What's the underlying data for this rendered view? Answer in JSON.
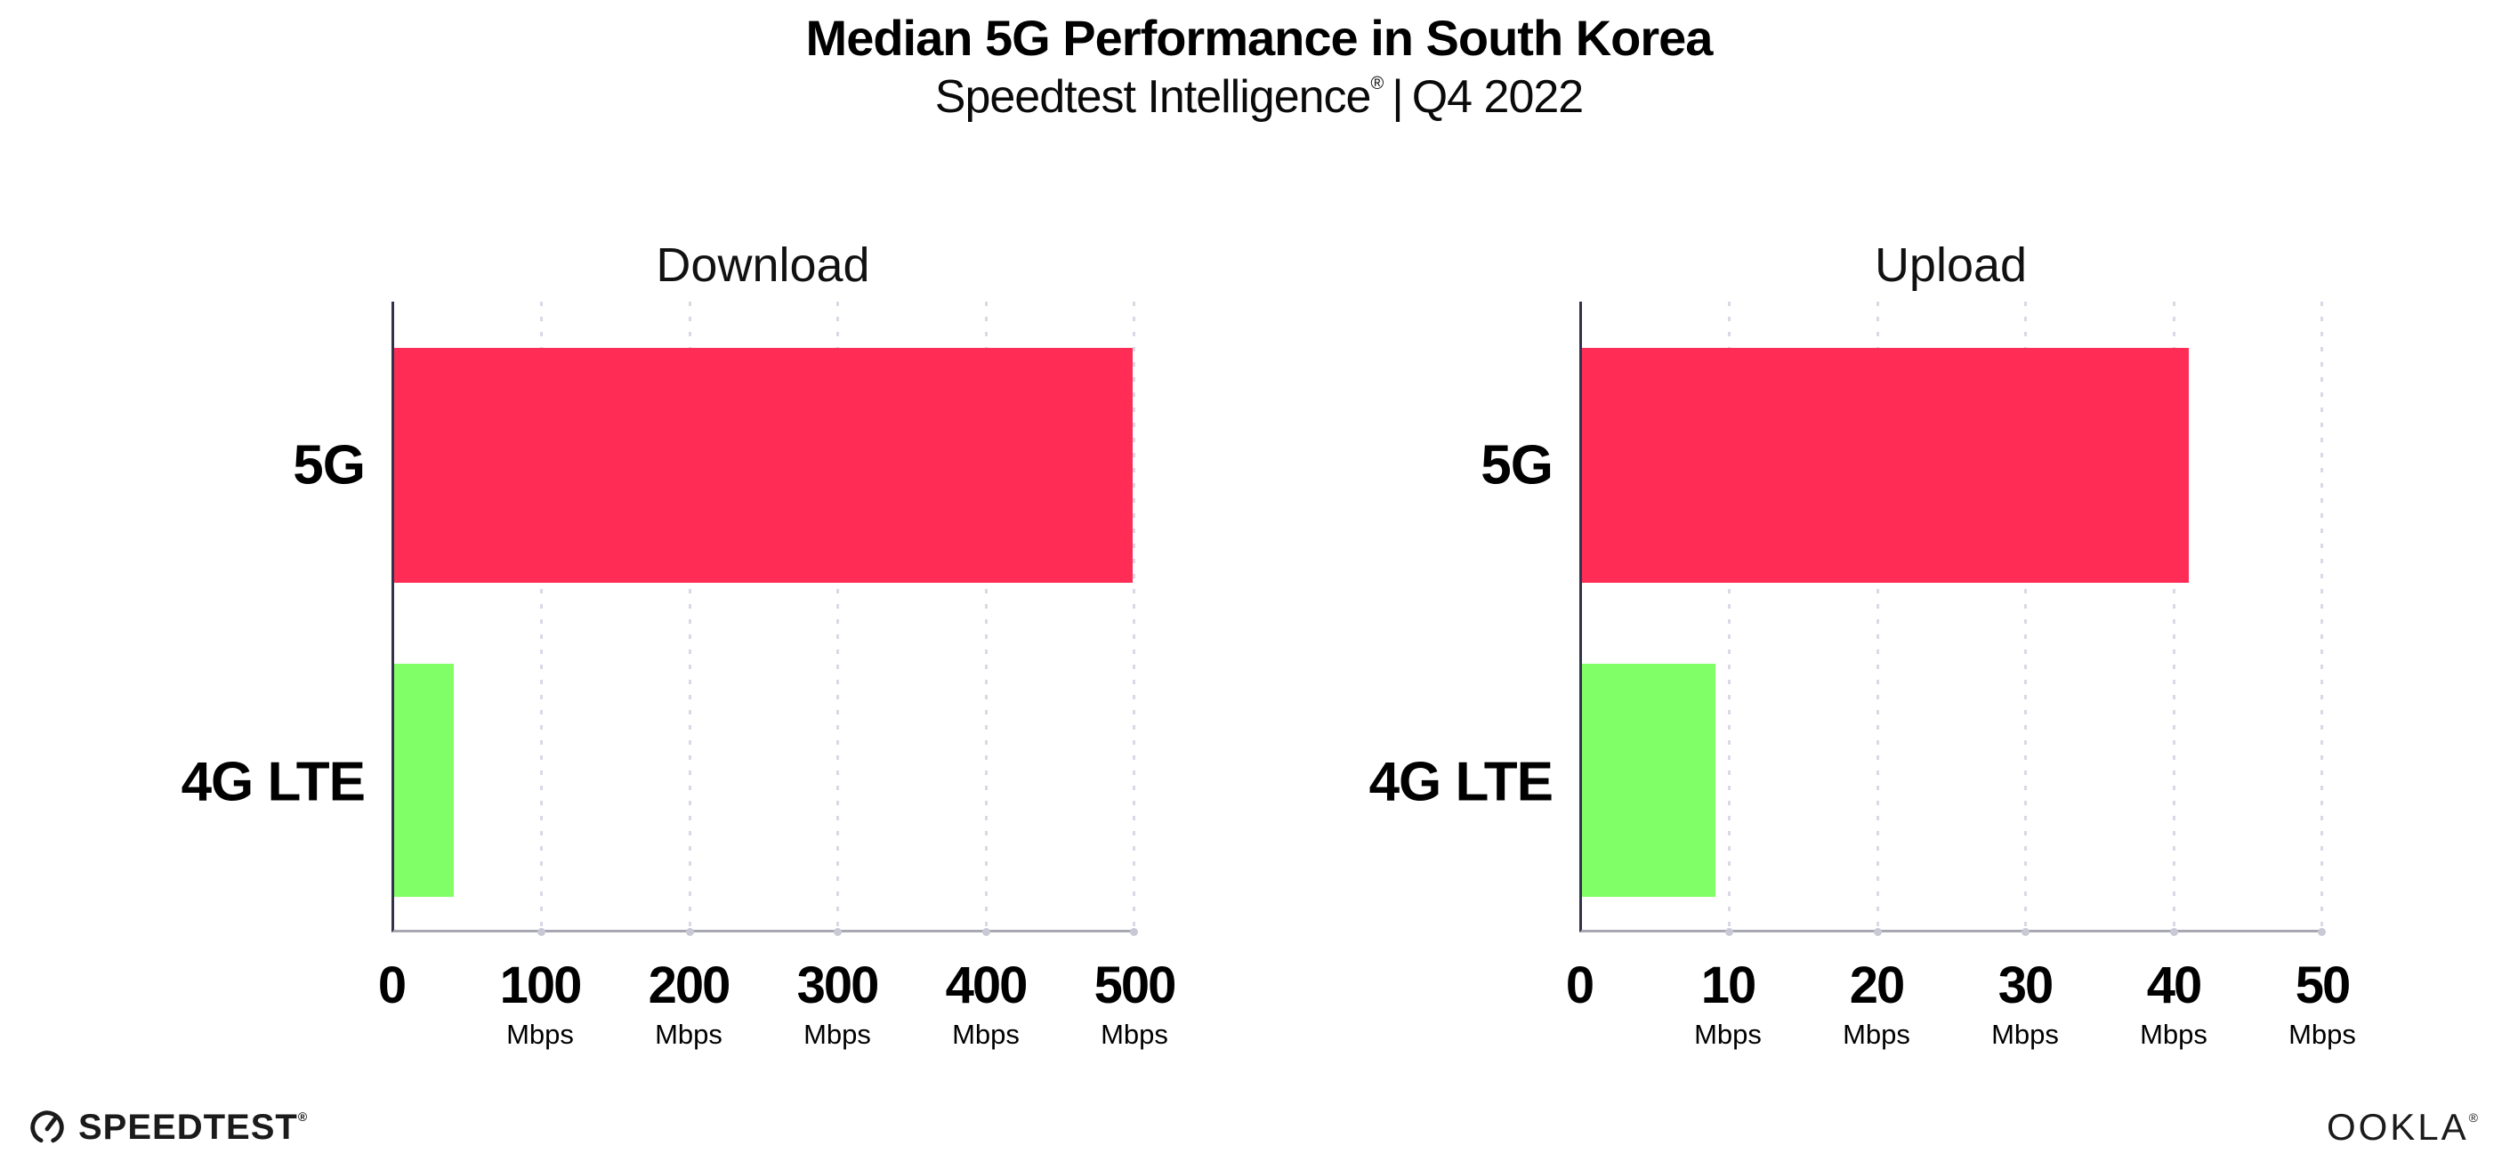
{
  "header": {
    "title": "Median 5G Performance in South Korea",
    "subtitle_brand": "Speedtest Intelligence",
    "subtitle_reg": "®",
    "subtitle_sep": "|",
    "subtitle_period": "Q4 2022"
  },
  "chart_data": [
    {
      "type": "bar",
      "orientation": "horizontal",
      "title": "Download",
      "categories": [
        "5G",
        "4G LTE"
      ],
      "values": [
        499,
        40
      ],
      "unit": "Mbps",
      "xlim": [
        0,
        500
      ],
      "xticks": [
        0,
        100,
        200,
        300,
        400,
        500
      ],
      "bar_colors": [
        "#ff2d55",
        "#80ff66"
      ],
      "grid": "dotted-vertical",
      "legend": "none"
    },
    {
      "type": "bar",
      "orientation": "horizontal",
      "title": "Upload",
      "categories": [
        "5G",
        "4G LTE"
      ],
      "values": [
        41,
        9
      ],
      "unit": "Mbps",
      "xlim": [
        0,
        50
      ],
      "xticks": [
        0,
        10,
        20,
        30,
        40,
        50
      ],
      "bar_colors": [
        "#ff2d55",
        "#80ff66"
      ],
      "grid": "dotted-vertical",
      "legend": "none"
    }
  ],
  "colors": {
    "bar_5g": "#ff2d55",
    "bar_4g_lte": "#80ff66",
    "axis_line": "#32324a",
    "baseline": "#a8a8b2",
    "gridline": "#d9d9e6",
    "text": "#000000"
  },
  "footer": {
    "speedtest_label": "SPEEDTEST",
    "speedtest_reg": "®",
    "ookla_label": "OOKLA",
    "ookla_reg": "®"
  }
}
